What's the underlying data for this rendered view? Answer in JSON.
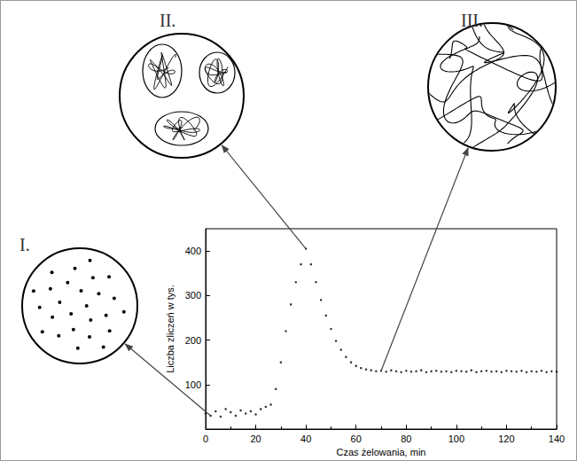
{
  "chart_data": {
    "type": "scatter",
    "x_label": "Czas żelowania, min",
    "y_label": "Liczba zliczeń w tys.",
    "x": [
      0,
      2,
      4,
      6,
      8,
      10,
      12,
      14,
      16,
      18,
      20,
      22,
      24,
      26,
      28,
      30,
      32,
      34,
      36,
      38,
      40,
      42,
      44,
      46,
      48,
      50,
      52,
      54,
      56,
      58,
      60,
      62,
      64,
      66,
      68,
      70,
      72,
      74,
      76,
      78,
      80,
      82,
      84,
      86,
      88,
      90,
      92,
      94,
      96,
      98,
      100,
      102,
      104,
      106,
      108,
      110,
      112,
      114,
      116,
      118,
      120,
      122,
      124,
      126,
      128,
      130,
      132,
      134,
      136,
      138,
      140
    ],
    "values": [
      35,
      30,
      40,
      28,
      45,
      38,
      30,
      42,
      35,
      40,
      33,
      45,
      50,
      55,
      90,
      150,
      220,
      280,
      330,
      370,
      405,
      370,
      330,
      290,
      255,
      225,
      198,
      178,
      162,
      150,
      142,
      137,
      134,
      132,
      130,
      131,
      129,
      132,
      130,
      128,
      131,
      129,
      130,
      132,
      128,
      130,
      131,
      129,
      130,
      128,
      131,
      130,
      129,
      132,
      128,
      130,
      131,
      129,
      130,
      128,
      131,
      130,
      129,
      131,
      128,
      130,
      129,
      131,
      128,
      130,
      129
    ],
    "color": "#000000",
    "marker": "dot",
    "xlim": [
      0,
      140
    ],
    "xticks": [
      0,
      20,
      40,
      60,
      80,
      100,
      120,
      140
    ],
    "ylim": [
      0,
      450
    ],
    "yticks": [
      100,
      200,
      300,
      400
    ],
    "grid": false,
    "annotations": [
      {
        "text": "I.",
        "x": 2,
        "y": 30
      },
      {
        "text": "II.",
        "x": 40,
        "y": 405
      },
      {
        "text": "III.",
        "x": 70,
        "y": 131
      }
    ]
  }
}
